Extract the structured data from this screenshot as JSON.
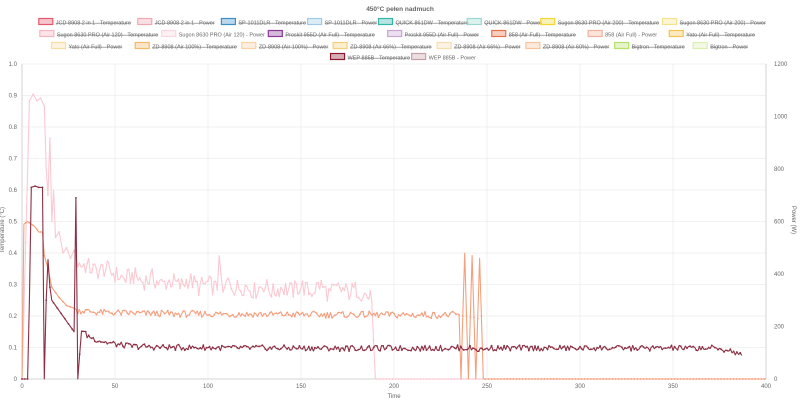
{
  "chart_data": {
    "type": "line",
    "title": "450°C pełen nadmuch",
    "xlabel": "Time",
    "ylabel_left": "Temperature (°C)",
    "ylabel_right": "Power (W)",
    "xlim": [
      0,
      400
    ],
    "ylim_left": [
      0,
      1.0
    ],
    "ylim_right": [
      0,
      1200
    ],
    "x_ticks": [
      "0",
      "50",
      "100",
      "150",
      "200",
      "250",
      "300",
      "350",
      "400"
    ],
    "y_left_ticks": [
      "0",
      "0.1",
      "0.2",
      "0.3",
      "0.4",
      "0.5",
      "0.6",
      "0.7",
      "0.8",
      "0.9",
      "1.0"
    ],
    "y_right_ticks": [
      "0",
      "200",
      "400",
      "600",
      "800",
      "1000",
      "1200"
    ],
    "grid": true,
    "legend_position": "top",
    "legend": [
      {
        "label": "JCD 8908 2 in 1 - Temperature",
        "color": "#e05a6b",
        "hidden": true
      },
      {
        "label": "JCD 8908 2 in 1 - Power",
        "color": "#f2a7b3",
        "hidden": true
      },
      {
        "label": "SP-1011DLR - Temperature",
        "color": "#3d8fc9",
        "hidden": true
      },
      {
        "label": "SP-1011DLR - Power",
        "color": "#9fcbe8",
        "hidden": true
      },
      {
        "label": "QUICK 861DW - Temperature",
        "color": "#35b5a8",
        "hidden": true
      },
      {
        "label": "QUICK 861DW - Power",
        "color": "#9ad9d2",
        "hidden": true
      },
      {
        "label": "Sugon 8630 PRO (Air 200) - Temperature",
        "color": "#f2d636",
        "hidden": true
      },
      {
        "label": "Sugon 8630 PRO (Air 200) - Power",
        "color": "#f5e28d",
        "hidden": true
      },
      {
        "label": "Sugon 8630 PRO (Air 120) - Temperature",
        "color": "#f6b3c0",
        "hidden": true
      },
      {
        "label": "Sugon 8630 PRO (Air 120) - Power",
        "color": "#fbd7de",
        "hidden": false
      },
      {
        "label": "Proskit 955D (Air Full) - Temperature",
        "color": "#8a3a94",
        "hidden": true
      },
      {
        "label": "Proskit 955D (Air Full) - Power",
        "color": "#c9a4d0",
        "hidden": true
      },
      {
        "label": "858 (Air Full) - Temperature",
        "color": "#e8724a",
        "hidden": true
      },
      {
        "label": "858 (Air Full) - Power",
        "color": "#f4b29a",
        "hidden": false
      },
      {
        "label": "Yato (Air Full) - Temperature",
        "color": "#f5c24f",
        "hidden": true
      },
      {
        "label": "Yato (Air Full) - Power",
        "color": "#f9dca0",
        "hidden": true
      },
      {
        "label": "ZD-8908 (Air 100%) - Temperature",
        "color": "#f5b867",
        "hidden": true
      },
      {
        "label": "ZD-8908 (Air 100%) - Power",
        "color": "#f8d2a3",
        "hidden": true
      },
      {
        "label": "ZD-8908 (Air 66%) - Temperature",
        "color": "#f7cf7a",
        "hidden": true
      },
      {
        "label": "ZD-8908 (Air 66%) - Power",
        "color": "#f9ddb0",
        "hidden": true
      },
      {
        "label": "ZD-8908 (Air 60%) - Power",
        "color": "#f7c39a",
        "hidden": true
      },
      {
        "label": "Bigtron - Temperature",
        "color": "#b5e06a",
        "hidden": true
      },
      {
        "label": "Bigtron - Power",
        "color": "#dbefb3",
        "hidden": true
      },
      {
        "label": "WEP 885B - Temperature",
        "color": "#8b1a2e",
        "hidden": true
      },
      {
        "label": "WEP 885B - Power",
        "color": "#c9a0a8",
        "hidden": false
      }
    ],
    "series": [
      {
        "name": "Sugon 8630 PRO (Air 120) - Power",
        "color": "#fbc9d2",
        "axis": "right",
        "points": [
          [
            0,
            0
          ],
          [
            2,
            520
          ],
          [
            4,
            1060
          ],
          [
            6,
            1085
          ],
          [
            8,
            1060
          ],
          [
            10,
            1070
          ],
          [
            12,
            1040
          ],
          [
            13,
            800
          ],
          [
            14,
            700
          ],
          [
            15,
            920
          ],
          [
            16,
            600
          ],
          [
            17,
            720
          ],
          [
            18,
            540
          ],
          [
            20,
            560
          ],
          [
            22,
            480
          ],
          [
            24,
            500
          ],
          [
            26,
            460
          ],
          [
            28,
            490
          ],
          [
            30,
            440
          ],
          [
            35,
            430
          ],
          [
            40,
            410
          ],
          [
            45,
            420
          ],
          [
            50,
            400
          ],
          [
            55,
            380
          ],
          [
            60,
            395
          ],
          [
            65,
            370
          ],
          [
            70,
            385
          ],
          [
            75,
            360
          ],
          [
            80,
            375
          ],
          [
            85,
            355
          ],
          [
            90,
            380
          ],
          [
            95,
            350
          ],
          [
            100,
            365
          ],
          [
            105,
            340
          ],
          [
            106,
            470
          ],
          [
            108,
            330
          ],
          [
            110,
            370
          ],
          [
            115,
            345
          ],
          [
            120,
            355
          ],
          [
            125,
            335
          ],
          [
            130,
            360
          ],
          [
            135,
            330
          ],
          [
            140,
            350
          ],
          [
            145,
            335
          ],
          [
            150,
            355
          ],
          [
            155,
            330
          ],
          [
            160,
            360
          ],
          [
            165,
            325
          ],
          [
            170,
            345
          ],
          [
            175,
            330
          ],
          [
            180,
            340
          ],
          [
            185,
            320
          ],
          [
            188,
            300
          ],
          [
            190,
            0
          ],
          [
            400,
            0
          ]
        ]
      },
      {
        "name": "858 (Air Full) - Power",
        "color": "#f4a07e",
        "axis": "right",
        "points": [
          [
            0,
            0
          ],
          [
            1,
            590
          ],
          [
            3,
            600
          ],
          [
            5,
            590
          ],
          [
            7,
            580
          ],
          [
            9,
            560
          ],
          [
            11,
            560
          ],
          [
            12,
            470
          ],
          [
            14,
            420
          ],
          [
            16,
            350
          ],
          [
            18,
            330
          ],
          [
            20,
            310
          ],
          [
            22,
            295
          ],
          [
            24,
            280
          ],
          [
            26,
            275
          ],
          [
            28,
            270
          ],
          [
            30,
            262
          ],
          [
            35,
            258
          ],
          [
            40,
            255
          ],
          [
            50,
            252
          ],
          [
            60,
            250
          ],
          [
            70,
            250
          ],
          [
            80,
            248
          ],
          [
            90,
            248
          ],
          [
            100,
            248
          ],
          [
            110,
            247
          ],
          [
            120,
            247
          ],
          [
            130,
            246
          ],
          [
            140,
            246
          ],
          [
            150,
            246
          ],
          [
            160,
            245
          ],
          [
            170,
            245
          ],
          [
            180,
            245
          ],
          [
            190,
            245
          ],
          [
            200,
            244
          ],
          [
            210,
            244
          ],
          [
            220,
            244
          ],
          [
            230,
            244
          ],
          [
            235,
            244
          ],
          [
            236,
            0
          ],
          [
            238,
            480
          ],
          [
            240,
            0
          ],
          [
            242,
            470
          ],
          [
            244,
            0
          ],
          [
            246,
            460
          ],
          [
            247,
            240
          ],
          [
            248,
            0
          ],
          [
            250,
            0
          ],
          [
            400,
            0
          ]
        ]
      },
      {
        "name": "WEP 885B - Power",
        "color": "#8c2f43",
        "axis": "right",
        "points": [
          [
            0,
            0
          ],
          [
            3,
            0
          ],
          [
            4,
            300
          ],
          [
            5,
            730
          ],
          [
            7,
            735
          ],
          [
            9,
            730
          ],
          [
            11,
            730
          ],
          [
            12,
            0
          ],
          [
            13,
            300
          ],
          [
            14,
            455
          ],
          [
            15,
            350
          ],
          [
            16,
            300
          ],
          [
            18,
            280
          ],
          [
            20,
            260
          ],
          [
            22,
            240
          ],
          [
            24,
            220
          ],
          [
            26,
            200
          ],
          [
            28,
            180
          ],
          [
            29,
            690
          ],
          [
            30,
            0
          ],
          [
            32,
            190
          ],
          [
            35,
            165
          ],
          [
            40,
            150
          ],
          [
            45,
            140
          ],
          [
            50,
            133
          ],
          [
            55,
            128
          ],
          [
            60,
            125
          ],
          [
            70,
            122
          ],
          [
            80,
            120
          ],
          [
            90,
            120
          ],
          [
            100,
            119
          ],
          [
            110,
            118
          ],
          [
            120,
            118
          ],
          [
            130,
            118
          ],
          [
            140,
            118
          ],
          [
            150,
            118
          ],
          [
            160,
            117
          ],
          [
            170,
            117
          ],
          [
            180,
            117
          ],
          [
            190,
            117
          ],
          [
            200,
            118
          ],
          [
            210,
            117
          ],
          [
            220,
            118
          ],
          [
            230,
            118
          ],
          [
            240,
            118
          ],
          [
            248,
            110
          ],
          [
            250,
            118
          ],
          [
            260,
            117
          ],
          [
            270,
            118
          ],
          [
            280,
            117
          ],
          [
            290,
            118
          ],
          [
            300,
            117
          ],
          [
            310,
            118
          ],
          [
            320,
            117
          ],
          [
            330,
            118
          ],
          [
            340,
            117
          ],
          [
            350,
            118
          ],
          [
            360,
            117
          ],
          [
            370,
            118
          ],
          [
            380,
            110
          ],
          [
            387,
            90
          ]
        ]
      }
    ]
  }
}
